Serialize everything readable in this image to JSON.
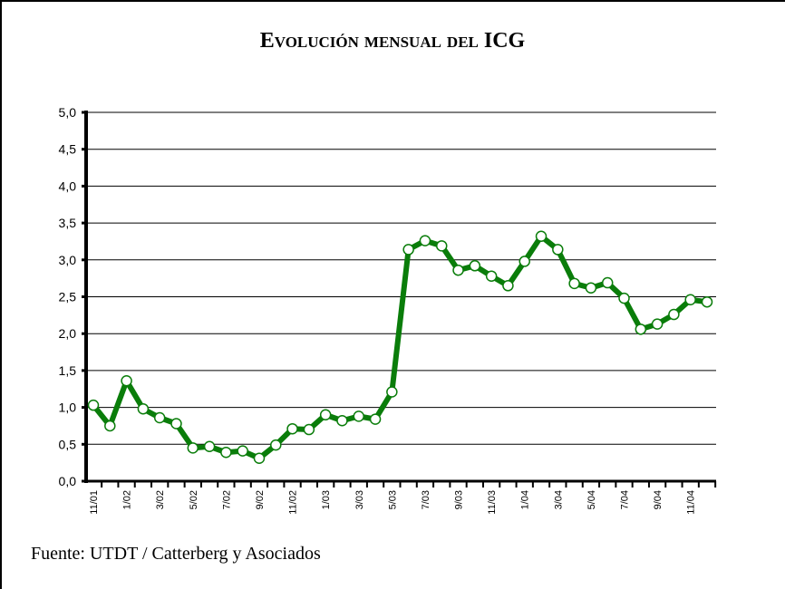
{
  "chart_data": {
    "type": "line",
    "title": "Evolución mensual del ICG",
    "note": "Fuente: UTDT / Catterberg y Asociados",
    "categories": [
      "11/01",
      null,
      "1/02",
      null,
      "3/02",
      null,
      "5/02",
      null,
      "7/02",
      null,
      "9/02",
      null,
      "11/02",
      null,
      "1/03",
      null,
      "3/03",
      null,
      "5/03",
      null,
      "7/03",
      null,
      "9/03",
      null,
      "11/03",
      null,
      "1/04",
      null,
      "3/04",
      null,
      "5/04",
      null,
      "7/04",
      null,
      "9/04",
      null,
      "11/04",
      null
    ],
    "series": [
      {
        "name": "ICG",
        "color": "#0a7d0a",
        "values": [
          1.03,
          0.75,
          1.36,
          0.98,
          0.86,
          0.78,
          0.45,
          0.47,
          0.39,
          0.41,
          0.31,
          0.49,
          0.71,
          0.7,
          0.9,
          0.82,
          0.88,
          0.84,
          1.21,
          3.14,
          3.26,
          3.19,
          2.86,
          2.92,
          2.78,
          2.65,
          2.98,
          3.32,
          3.14,
          2.68,
          2.62,
          2.69,
          2.48,
          2.06,
          2.13,
          2.26,
          2.46,
          2.43
        ]
      }
    ],
    "ylim": [
      0,
      5
    ],
    "yticks": [
      {
        "value": 0,
        "label": "0,0"
      },
      {
        "value": 0.5,
        "label": "0,5"
      },
      {
        "value": 1,
        "label": "1,0"
      },
      {
        "value": 1.5,
        "label": "1,5"
      },
      {
        "value": 2,
        "label": "2,0"
      },
      {
        "value": 2.5,
        "label": "2,5"
      },
      {
        "value": 3,
        "label": "3,0"
      },
      {
        "value": 3.5,
        "label": "3,5"
      },
      {
        "value": 4,
        "label": "4,0"
      },
      {
        "value": 4.5,
        "label": "4,5"
      },
      {
        "value": 5,
        "label": "5,0"
      }
    ],
    "grid": true
  }
}
